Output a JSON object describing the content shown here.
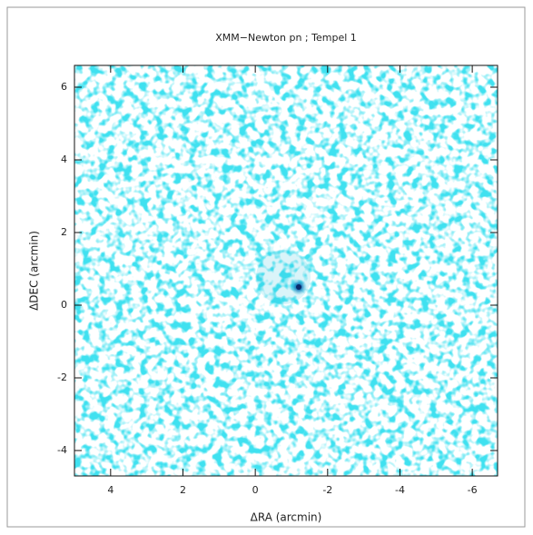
{
  "chart_data": {
    "type": "image",
    "title": "XMM−Newton pn ; Tempel 1",
    "x_label": "ΔRA (arcmin)",
    "y_label": "ΔDEC (arcmin)",
    "xlim": [
      5,
      -6.7
    ],
    "ylim": [
      -4.7,
      6.6
    ],
    "xticks": [
      4,
      2,
      0,
      -2,
      -4,
      -6
    ],
    "yticks": [
      -4,
      -2,
      0,
      2,
      4,
      6
    ],
    "color": "#00b4d8"
  }
}
